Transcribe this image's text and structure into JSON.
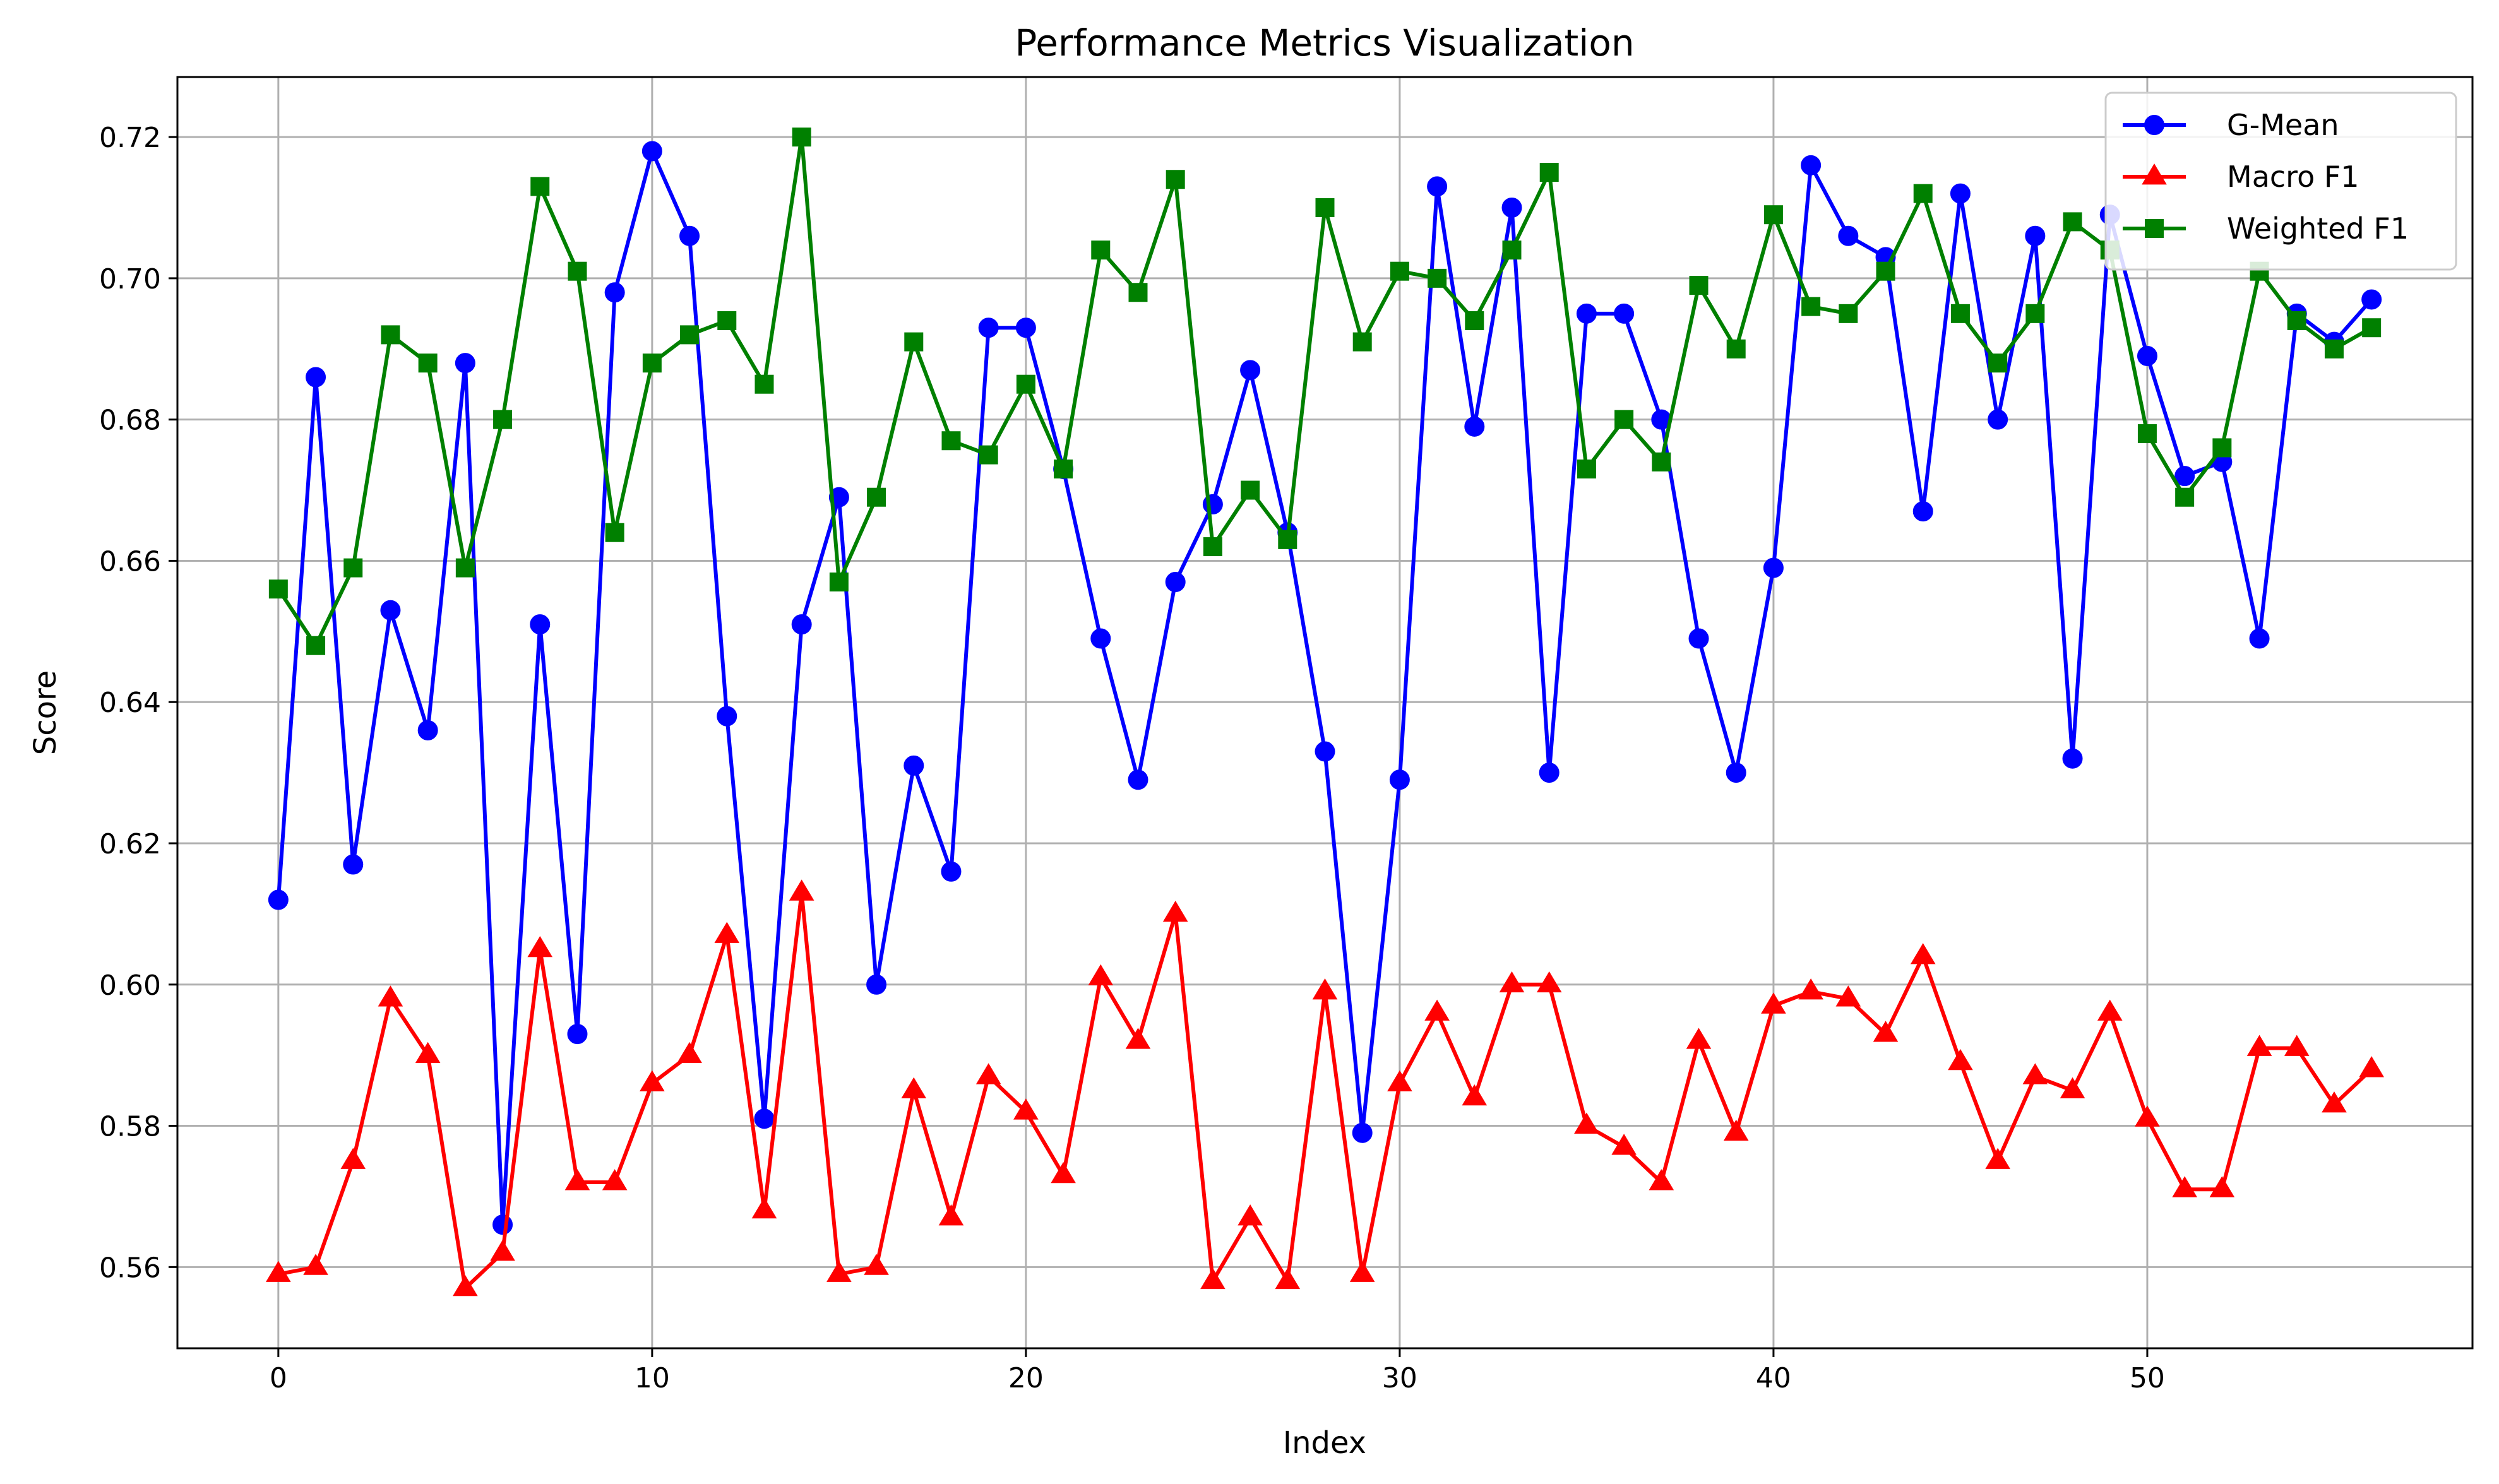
{
  "chart_data": {
    "type": "line",
    "title": "Performance Metrics Visualization",
    "xlabel": "Index",
    "ylabel": "Score",
    "xlim": [
      -2.7,
      58.7
    ],
    "ylim": [
      0.5485,
      0.7285
    ],
    "xticks": [
      0,
      10,
      20,
      30,
      40,
      50
    ],
    "yticks": [
      0.56,
      0.58,
      0.6,
      0.62,
      0.64,
      0.66,
      0.68,
      0.7,
      0.72
    ],
    "grid": true,
    "legend_position": "top-right",
    "x": [
      0,
      1,
      2,
      3,
      4,
      5,
      6,
      7,
      8,
      9,
      10,
      11,
      12,
      13,
      14,
      15,
      16,
      17,
      18,
      19,
      20,
      21,
      22,
      23,
      24,
      25,
      26,
      27,
      28,
      29,
      30,
      31,
      32,
      33,
      34,
      35,
      36,
      37,
      38,
      39,
      40,
      41,
      42,
      43,
      44,
      45,
      46,
      47,
      48,
      49,
      50,
      51,
      52,
      53,
      54,
      55,
      56
    ],
    "series": [
      {
        "name": "G-Mean",
        "color": "#0000ff",
        "marker": "circle",
        "values": [
          0.612,
          0.686,
          0.617,
          0.653,
          0.636,
          0.688,
          0.566,
          0.651,
          0.593,
          0.698,
          0.718,
          0.706,
          0.638,
          0.581,
          0.651,
          0.669,
          0.6,
          0.631,
          0.616,
          0.693,
          0.693,
          0.673,
          0.649,
          0.629,
          0.657,
          0.668,
          0.687,
          0.664,
          0.633,
          0.579,
          0.629,
          0.713,
          0.679,
          0.71,
          0.63,
          0.695,
          0.695,
          0.68,
          0.649,
          0.63,
          0.659,
          0.716,
          0.706,
          0.703,
          0.667,
          0.712,
          0.68,
          0.706,
          0.632,
          0.709,
          0.689,
          0.672,
          0.674,
          0.649,
          0.695,
          0.691,
          0.697
        ]
      },
      {
        "name": "Macro F1",
        "color": "#ff0000",
        "marker": "triangle",
        "values": [
          0.559,
          0.56,
          0.575,
          0.598,
          0.59,
          0.557,
          0.562,
          0.605,
          0.572,
          0.572,
          0.586,
          0.59,
          0.607,
          0.568,
          0.613,
          0.559,
          0.56,
          0.585,
          0.567,
          0.587,
          0.582,
          0.573,
          0.601,
          0.592,
          0.61,
          0.558,
          0.567,
          0.558,
          0.599,
          0.559,
          0.586,
          0.596,
          0.584,
          0.6,
          0.6,
          0.58,
          0.577,
          0.572,
          0.592,
          0.579,
          0.597,
          0.599,
          0.598,
          0.593,
          0.604,
          0.589,
          0.575,
          0.587,
          0.585,
          0.596,
          0.581,
          0.571,
          0.571,
          0.591,
          0.591,
          0.583,
          0.588
        ]
      },
      {
        "name": "Weighted F1",
        "color": "#008000",
        "marker": "square",
        "values": [
          0.656,
          0.648,
          0.659,
          0.692,
          0.688,
          0.659,
          0.68,
          0.713,
          0.701,
          0.664,
          0.688,
          0.692,
          0.694,
          0.685,
          0.72,
          0.657,
          0.669,
          0.691,
          0.677,
          0.675,
          0.685,
          0.673,
          0.704,
          0.698,
          0.714,
          0.662,
          0.67,
          0.663,
          0.71,
          0.691,
          0.701,
          0.7,
          0.694,
          0.704,
          0.715,
          0.673,
          0.68,
          0.674,
          0.699,
          0.69,
          0.709,
          0.696,
          0.695,
          0.701,
          0.712,
          0.695,
          0.688,
          0.695,
          0.708,
          0.704,
          0.678,
          0.669,
          0.676,
          0.701,
          0.694,
          0.69,
          0.693
        ]
      }
    ]
  }
}
